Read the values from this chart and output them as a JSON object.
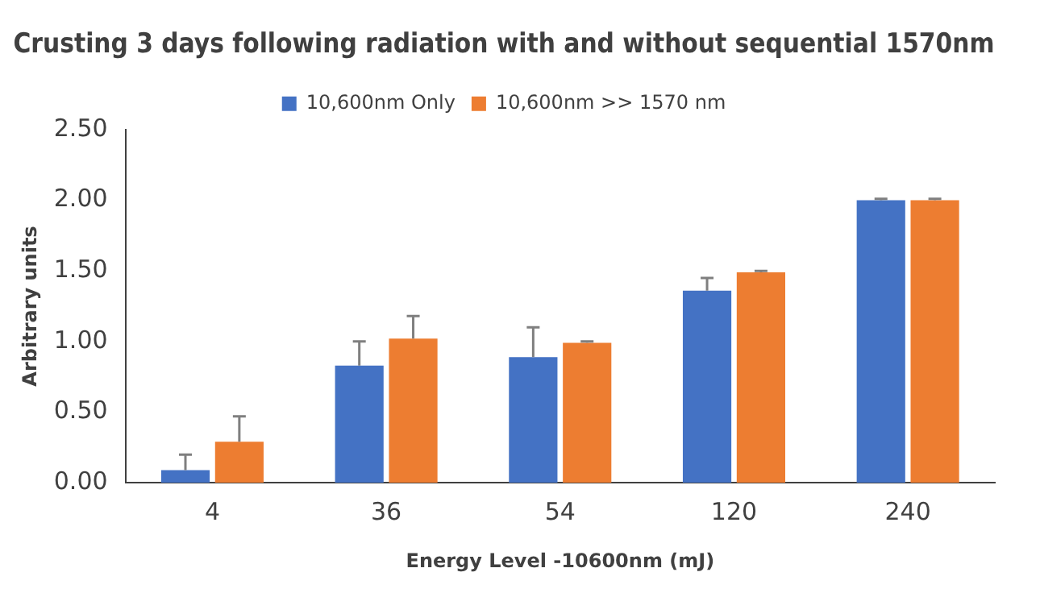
{
  "chart_data": {
    "type": "bar",
    "title": "Crusting 3 days following radiation with and without sequential 1570nm",
    "xlabel": "Energy Level -10600nm (mJ)",
    "ylabel": "Arbitrary units",
    "categories": [
      "4",
      "36",
      "54",
      "120",
      "240"
    ],
    "series": [
      {
        "name": "10,600nm Only",
        "color": "#4472c4",
        "values": [
          0.09,
          0.83,
          0.89,
          1.36,
          2.0
        ],
        "errors": [
          [
            0.09,
            0.2
          ],
          [
            0.83,
            1.0
          ],
          [
            0.89,
            1.1
          ],
          [
            1.36,
            1.45
          ],
          [
            2.0,
            2.01
          ]
        ]
      },
      {
        "name": "10,600nm >> 1570 nm",
        "color": "#ed7d31",
        "values": [
          0.29,
          1.02,
          0.99,
          1.49,
          2.0
        ],
        "errors": [
          [
            0.29,
            0.47
          ],
          [
            1.02,
            1.18
          ],
          [
            0.99,
            1.0
          ],
          [
            1.49,
            1.5
          ],
          [
            2.0,
            2.01
          ]
        ]
      }
    ],
    "ylim": [
      0,
      2.5
    ],
    "yticks": [
      {
        "value": 0,
        "label": "0.00"
      },
      {
        "value": 0.5,
        "label": "0.50"
      },
      {
        "value": 1,
        "label": "1.00"
      },
      {
        "value": 1.5,
        "label": "1.50"
      },
      {
        "value": 2,
        "label": "2.00"
      },
      {
        "value": 2.5,
        "label": "2.50"
      }
    ],
    "grid": false,
    "legend": "top"
  }
}
